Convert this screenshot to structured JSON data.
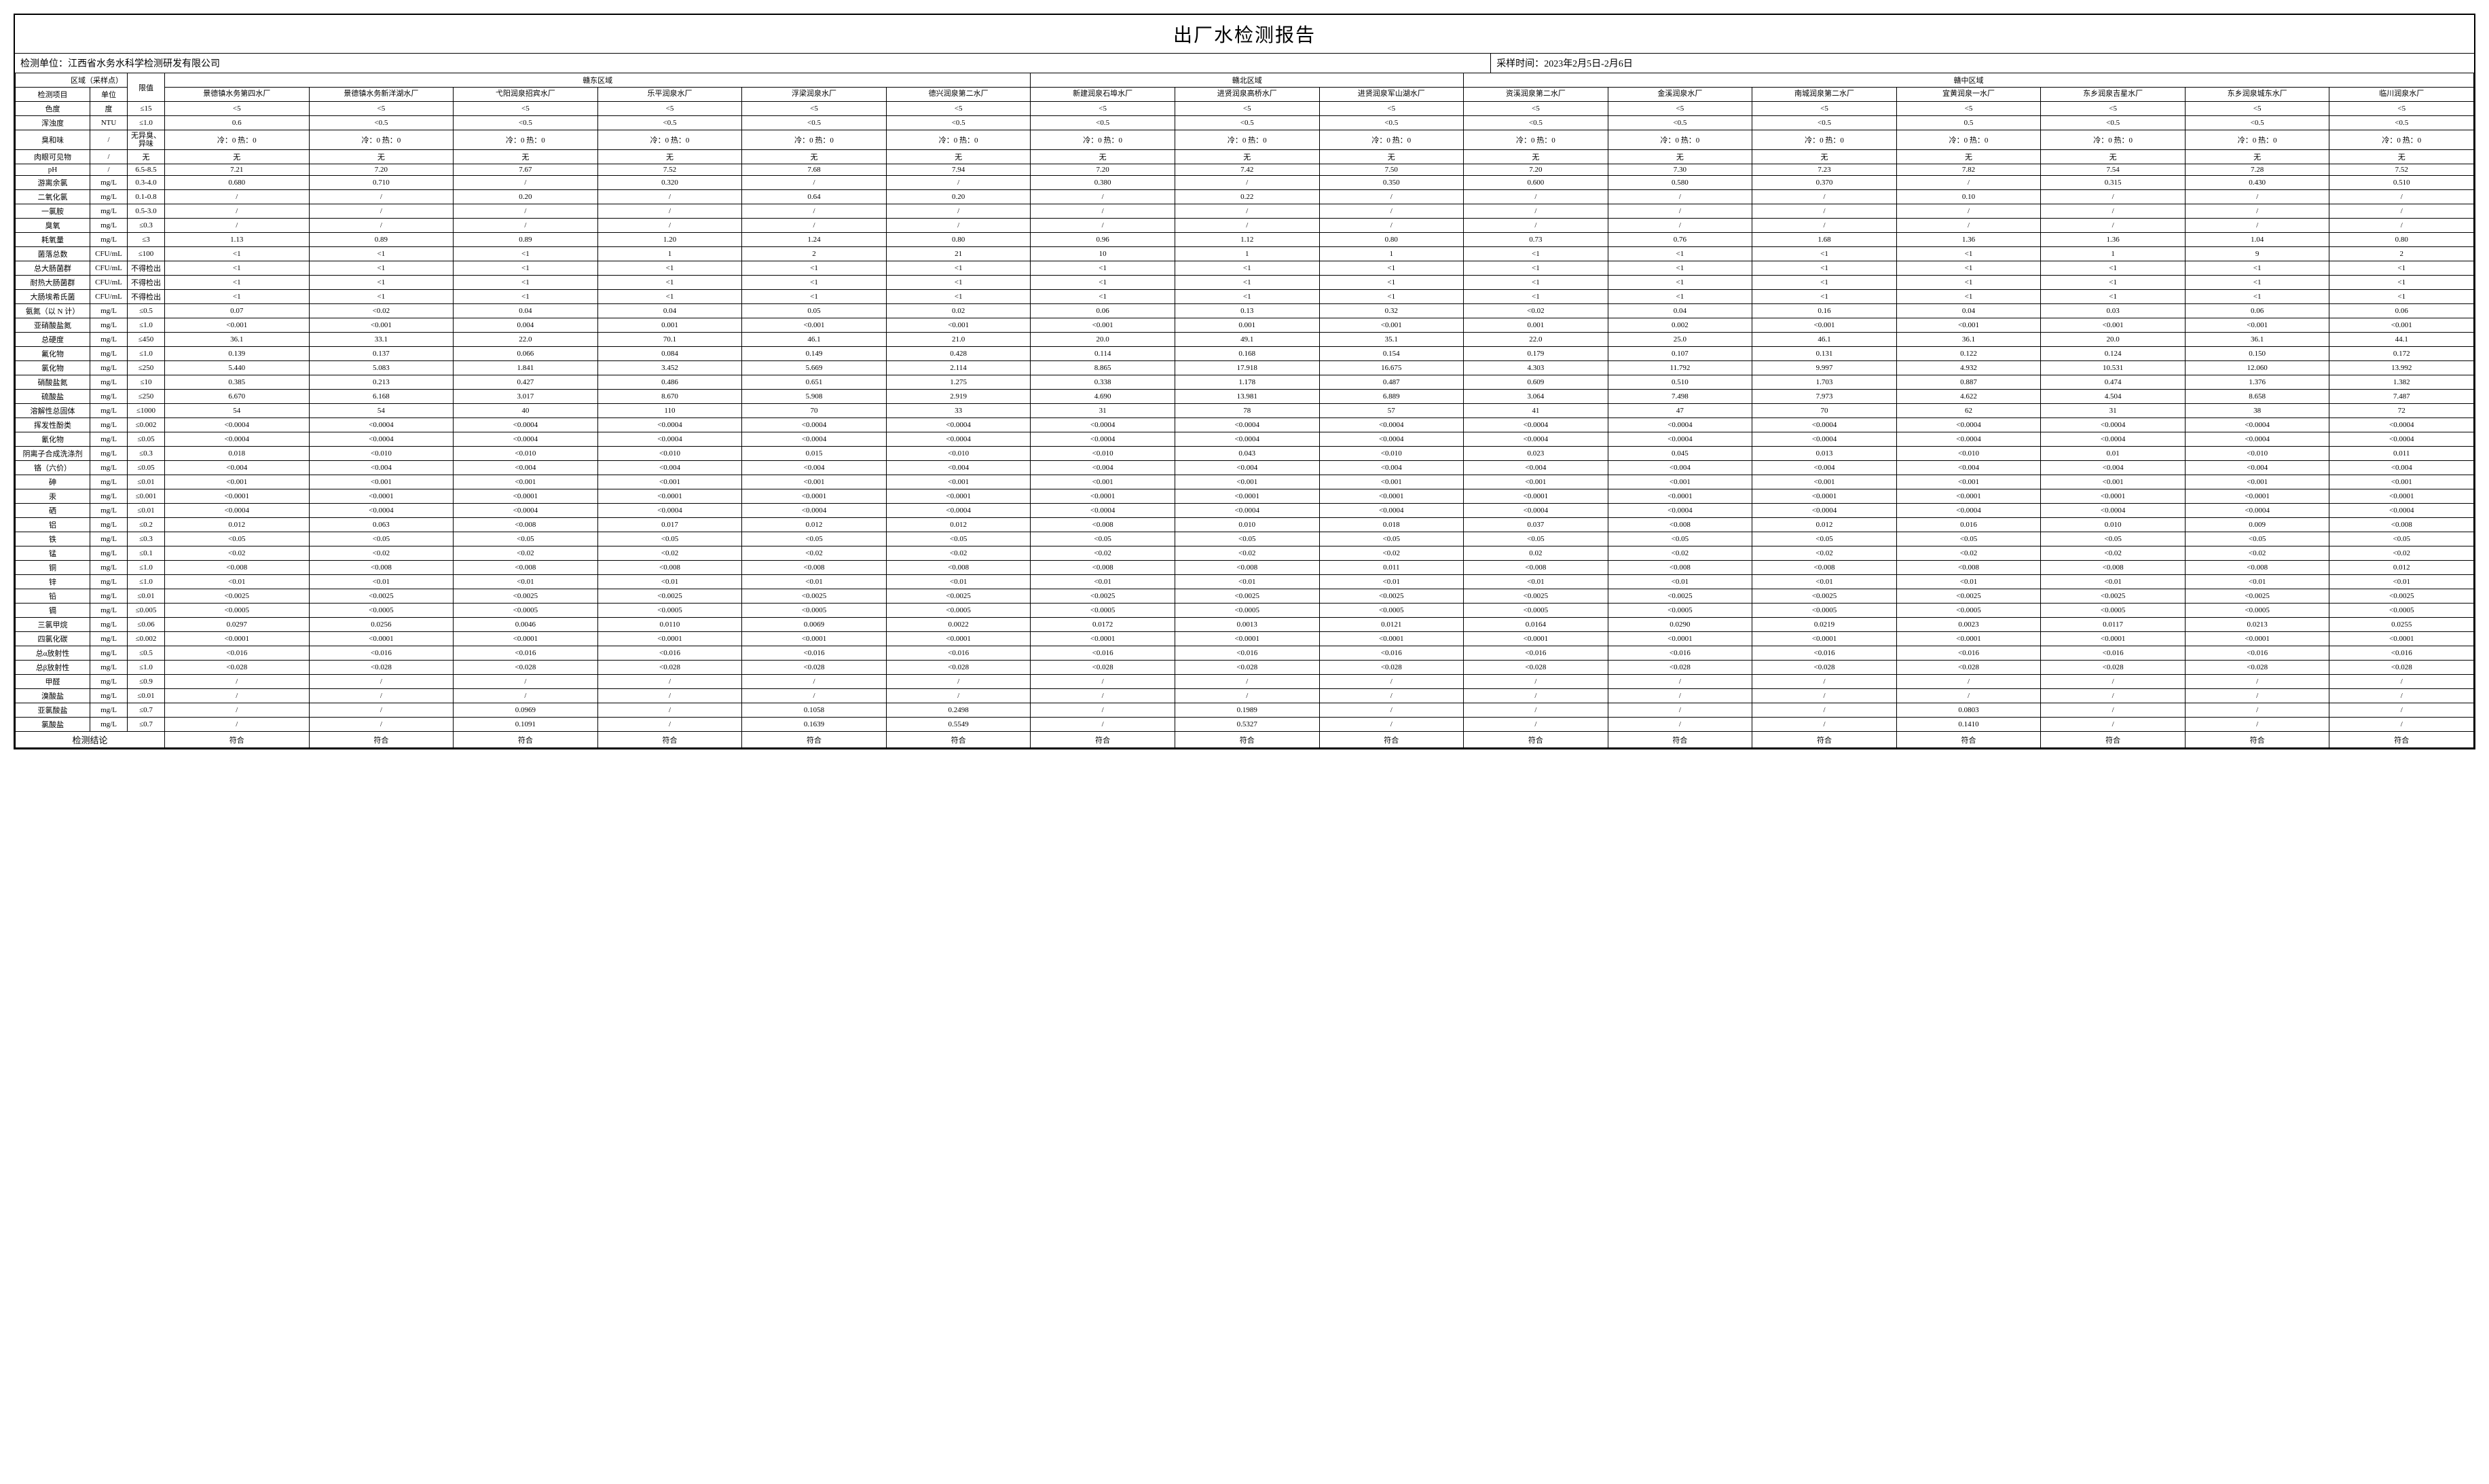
{
  "title": "出厂水检测报告",
  "meta": {
    "org_label": "检测单位：",
    "org_value": "江西省水务水科学检测研发有限公司",
    "time_label": "采样时间：",
    "time_value": "2023年2月5日-2月6日"
  },
  "header": {
    "area_label": "区域（采样点）",
    "param_label": "检测项目",
    "unit_label": "单位",
    "limit_label": "限值",
    "regions": [
      {
        "name": "赣东区域",
        "plants": [
          "景德镇水务第四水厂",
          "景德镇水务新洋湖水厂",
          "弋阳润泉招宾水厂",
          "乐平润泉水厂",
          "浮梁润泉水厂",
          "德兴润泉第二水厂"
        ]
      },
      {
        "name": "赣北区域",
        "plants": [
          "新建润泉石埠水厂",
          "进贤润泉高桥水厂",
          "进贤润泉军山湖水厂"
        ]
      },
      {
        "name": "赣中区域",
        "plants": [
          "资溪润泉第二水厂",
          "金溪润泉水厂",
          "南城润泉第二水厂",
          "宜黄润泉一水厂",
          "东乡润泉吉星水厂",
          "东乡润泉城东水厂",
          "临川润泉水厂"
        ]
      }
    ]
  },
  "params": [
    {
      "n": "色度",
      "u": "度",
      "l": "≤15",
      "v": [
        "<5",
        "<5",
        "<5",
        "<5",
        "<5",
        "<5",
        "<5",
        "<5",
        "<5",
        "<5",
        "<5",
        "<5",
        "<5",
        "<5",
        "<5",
        "<5"
      ]
    },
    {
      "n": "浑浊度",
      "u": "NTU",
      "l": "≤1.0",
      "v": [
        "0.6",
        "<0.5",
        "<0.5",
        "<0.5",
        "<0.5",
        "<0.5",
        "<0.5",
        "<0.5",
        "<0.5",
        "<0.5",
        "<0.5",
        "<0.5",
        "0.5",
        "<0.5",
        "<0.5",
        "<0.5"
      ]
    },
    {
      "n": "臭和味",
      "u": "/",
      "l": "无异臭、异味",
      "v": [
        "冷：0 热：0",
        "冷：0 热：0",
        "冷：0 热：0",
        "冷：0 热：0",
        "冷：0 热：0",
        "冷：0 热：0",
        "冷：0 热：0",
        "冷：0 热：0",
        "冷：0 热：0",
        "冷：0 热：0",
        "冷：0 热：0",
        "冷：0 热：0",
        "冷：0 热：0",
        "冷：0 热：0",
        "冷：0 热：0",
        "冷：0 热：0"
      ]
    },
    {
      "n": "肉眼可见物",
      "u": "/",
      "l": "无",
      "v": [
        "无",
        "无",
        "无",
        "无",
        "无",
        "无",
        "无",
        "无",
        "无",
        "无",
        "无",
        "无",
        "无",
        "无",
        "无",
        "无"
      ]
    },
    {
      "n": "pH",
      "u": "/",
      "l": "6.5-8.5",
      "v": [
        "7.21",
        "7.20",
        "7.67",
        "7.52",
        "7.68",
        "7.94",
        "7.20",
        "7.42",
        "7.50",
        "7.20",
        "7.30",
        "7.23",
        "7.82",
        "7.54",
        "7.28",
        "7.52"
      ]
    },
    {
      "n": "游离余氯",
      "u": "mg/L",
      "l": "0.3-4.0",
      "v": [
        "0.680",
        "0.710",
        "/",
        "0.320",
        "/",
        "/",
        "0.380",
        "/",
        "0.350",
        "0.600",
        "0.580",
        "0.370",
        "/",
        "0.315",
        "0.430",
        "0.510"
      ]
    },
    {
      "n": "二氧化氯",
      "u": "mg/L",
      "l": "0.1-0.8",
      "v": [
        "/",
        "/",
        "0.20",
        "/",
        "0.64",
        "0.20",
        "/",
        "0.22",
        "/",
        "/",
        "/",
        "/",
        "0.10",
        "/",
        "/",
        "/"
      ]
    },
    {
      "n": "一氯胺",
      "u": "mg/L",
      "l": "0.5-3.0",
      "v": [
        "/",
        "/",
        "/",
        "/",
        "/",
        "/",
        "/",
        "/",
        "/",
        "/",
        "/",
        "/",
        "/",
        "/",
        "/",
        "/"
      ]
    },
    {
      "n": "臭氧",
      "u": "mg/L",
      "l": "≤0.3",
      "v": [
        "/",
        "/",
        "/",
        "/",
        "/",
        "/",
        "/",
        "/",
        "/",
        "/",
        "/",
        "/",
        "/",
        "/",
        "/",
        "/"
      ]
    },
    {
      "n": "耗氧量",
      "u": "mg/L",
      "l": "≤3",
      "v": [
        "1.13",
        "0.89",
        "0.89",
        "1.20",
        "1.24",
        "0.80",
        "0.96",
        "1.12",
        "0.80",
        "0.73",
        "0.76",
        "1.68",
        "1.36",
        "1.36",
        "1.04",
        "0.80"
      ]
    },
    {
      "n": "菌落总数",
      "u": "CFU/mL",
      "l": "≤100",
      "v": [
        "<1",
        "<1",
        "<1",
        "1",
        "2",
        "21",
        "10",
        "1",
        "1",
        "<1",
        "<1",
        "<1",
        "<1",
        "1",
        "9",
        "2"
      ]
    },
    {
      "n": "总大肠菌群",
      "u": "CFU/mL",
      "l": "不得检出",
      "v": [
        "<1",
        "<1",
        "<1",
        "<1",
        "<1",
        "<1",
        "<1",
        "<1",
        "<1",
        "<1",
        "<1",
        "<1",
        "<1",
        "<1",
        "<1",
        "<1"
      ]
    },
    {
      "n": "耐热大肠菌群",
      "u": "CFU/mL",
      "l": "不得检出",
      "v": [
        "<1",
        "<1",
        "<1",
        "<1",
        "<1",
        "<1",
        "<1",
        "<1",
        "<1",
        "<1",
        "<1",
        "<1",
        "<1",
        "<1",
        "<1",
        "<1"
      ]
    },
    {
      "n": "大肠埃希氏菌",
      "u": "CFU/mL",
      "l": "不得检出",
      "v": [
        "<1",
        "<1",
        "<1",
        "<1",
        "<1",
        "<1",
        "<1",
        "<1",
        "<1",
        "<1",
        "<1",
        "<1",
        "<1",
        "<1",
        "<1",
        "<1"
      ]
    },
    {
      "n": "氨氮（以 N 计）",
      "u": "mg/L",
      "l": "≤0.5",
      "v": [
        "0.07",
        "<0.02",
        "0.04",
        "0.04",
        "0.05",
        "0.02",
        "0.06",
        "0.13",
        "0.32",
        "<0.02",
        "0.04",
        "0.16",
        "0.04",
        "0.03",
        "0.06",
        "0.06"
      ]
    },
    {
      "n": "亚硝酸盐氮",
      "u": "mg/L",
      "l": "≤1.0",
      "v": [
        "<0.001",
        "<0.001",
        "0.004",
        "0.001",
        "<0.001",
        "<0.001",
        "<0.001",
        "0.001",
        "<0.001",
        "0.001",
        "0.002",
        "<0.001",
        "<0.001",
        "<0.001",
        "<0.001",
        "<0.001"
      ]
    },
    {
      "n": "总硬度",
      "u": "mg/L",
      "l": "≤450",
      "v": [
        "36.1",
        "33.1",
        "22.0",
        "70.1",
        "46.1",
        "21.0",
        "20.0",
        "49.1",
        "35.1",
        "22.0",
        "25.0",
        "46.1",
        "36.1",
        "20.0",
        "36.1",
        "44.1"
      ]
    },
    {
      "n": "氟化物",
      "u": "mg/L",
      "l": "≤1.0",
      "v": [
        "0.139",
        "0.137",
        "0.066",
        "0.084",
        "0.149",
        "0.428",
        "0.114",
        "0.168",
        "0.154",
        "0.179",
        "0.107",
        "0.131",
        "0.122",
        "0.124",
        "0.150",
        "0.172"
      ]
    },
    {
      "n": "氯化物",
      "u": "mg/L",
      "l": "≤250",
      "v": [
        "5.440",
        "5.083",
        "1.841",
        "3.452",
        "5.669",
        "2.114",
        "8.865",
        "17.918",
        "16.675",
        "4.303",
        "11.792",
        "9.997",
        "4.932",
        "10.531",
        "12.060",
        "13.992"
      ]
    },
    {
      "n": "硝酸盐氮",
      "u": "mg/L",
      "l": "≤10",
      "v": [
        "0.385",
        "0.213",
        "0.427",
        "0.486",
        "0.651",
        "1.275",
        "0.338",
        "1.178",
        "0.487",
        "0.609",
        "0.510",
        "1.703",
        "0.887",
        "0.474",
        "1.376",
        "1.382"
      ]
    },
    {
      "n": "硫酸盐",
      "u": "mg/L",
      "l": "≤250",
      "v": [
        "6.670",
        "6.168",
        "3.017",
        "8.670",
        "5.908",
        "2.919",
        "4.690",
        "13.981",
        "6.889",
        "3.064",
        "7.498",
        "7.973",
        "4.622",
        "4.504",
        "8.658",
        "7.487"
      ]
    },
    {
      "n": "溶解性总固体",
      "u": "mg/L",
      "l": "≤1000",
      "v": [
        "54",
        "54",
        "40",
        "110",
        "70",
        "33",
        "31",
        "78",
        "57",
        "41",
        "47",
        "70",
        "62",
        "31",
        "38",
        "72"
      ]
    },
    {
      "n": "挥发性酚类",
      "u": "mg/L",
      "l": "≤0.002",
      "v": [
        "<0.0004",
        "<0.0004",
        "<0.0004",
        "<0.0004",
        "<0.0004",
        "<0.0004",
        "<0.0004",
        "<0.0004",
        "<0.0004",
        "<0.0004",
        "<0.0004",
        "<0.0004",
        "<0.0004",
        "<0.0004",
        "<0.0004",
        "<0.0004"
      ]
    },
    {
      "n": "氰化物",
      "u": "mg/L",
      "l": "≤0.05",
      "v": [
        "<0.0004",
        "<0.0004",
        "<0.0004",
        "<0.0004",
        "<0.0004",
        "<0.0004",
        "<0.0004",
        "<0.0004",
        "<0.0004",
        "<0.0004",
        "<0.0004",
        "<0.0004",
        "<0.0004",
        "<0.0004",
        "<0.0004",
        "<0.0004"
      ]
    },
    {
      "n": "阴离子合成洗涤剂",
      "u": "mg/L",
      "l": "≤0.3",
      "v": [
        "0.018",
        "<0.010",
        "<0.010",
        "<0.010",
        "0.015",
        "<0.010",
        "<0.010",
        "0.043",
        "<0.010",
        "0.023",
        "0.045",
        "0.013",
        "<0.010",
        "0.01",
        "<0.010",
        "0.011"
      ]
    },
    {
      "n": "铬（六价）",
      "u": "mg/L",
      "l": "≤0.05",
      "v": [
        "<0.004",
        "<0.004",
        "<0.004",
        "<0.004",
        "<0.004",
        "<0.004",
        "<0.004",
        "<0.004",
        "<0.004",
        "<0.004",
        "<0.004",
        "<0.004",
        "<0.004",
        "<0.004",
        "<0.004",
        "<0.004"
      ]
    },
    {
      "n": "砷",
      "u": "mg/L",
      "l": "≤0.01",
      "v": [
        "<0.001",
        "<0.001",
        "<0.001",
        "<0.001",
        "<0.001",
        "<0.001",
        "<0.001",
        "<0.001",
        "<0.001",
        "<0.001",
        "<0.001",
        "<0.001",
        "<0.001",
        "<0.001",
        "<0.001",
        "<0.001"
      ]
    },
    {
      "n": "汞",
      "u": "mg/L",
      "l": "≤0.001",
      "v": [
        "<0.0001",
        "<0.0001",
        "<0.0001",
        "<0.0001",
        "<0.0001",
        "<0.0001",
        "<0.0001",
        "<0.0001",
        "<0.0001",
        "<0.0001",
        "<0.0001",
        "<0.0001",
        "<0.0001",
        "<0.0001",
        "<0.0001",
        "<0.0001"
      ]
    },
    {
      "n": "硒",
      "u": "mg/L",
      "l": "≤0.01",
      "v": [
        "<0.0004",
        "<0.0004",
        "<0.0004",
        "<0.0004",
        "<0.0004",
        "<0.0004",
        "<0.0004",
        "<0.0004",
        "<0.0004",
        "<0.0004",
        "<0.0004",
        "<0.0004",
        "<0.0004",
        "<0.0004",
        "<0.0004",
        "<0.0004"
      ]
    },
    {
      "n": "铝",
      "u": "mg/L",
      "l": "≤0.2",
      "v": [
        "0.012",
        "0.063",
        "<0.008",
        "0.017",
        "0.012",
        "0.012",
        "<0.008",
        "0.010",
        "0.018",
        "0.037",
        "<0.008",
        "0.012",
        "0.016",
        "0.010",
        "0.009",
        "<0.008"
      ]
    },
    {
      "n": "铁",
      "u": "mg/L",
      "l": "≤0.3",
      "v": [
        "<0.05",
        "<0.05",
        "<0.05",
        "<0.05",
        "<0.05",
        "<0.05",
        "<0.05",
        "<0.05",
        "<0.05",
        "<0.05",
        "<0.05",
        "<0.05",
        "<0.05",
        "<0.05",
        "<0.05",
        "<0.05"
      ]
    },
    {
      "n": "锰",
      "u": "mg/L",
      "l": "≤0.1",
      "v": [
        "<0.02",
        "<0.02",
        "<0.02",
        "<0.02",
        "<0.02",
        "<0.02",
        "<0.02",
        "<0.02",
        "<0.02",
        "0.02",
        "<0.02",
        "<0.02",
        "<0.02",
        "<0.02",
        "<0.02",
        "<0.02"
      ]
    },
    {
      "n": "铜",
      "u": "mg/L",
      "l": "≤1.0",
      "v": [
        "<0.008",
        "<0.008",
        "<0.008",
        "<0.008",
        "<0.008",
        "<0.008",
        "<0.008",
        "<0.008",
        "0.011",
        "<0.008",
        "<0.008",
        "<0.008",
        "<0.008",
        "<0.008",
        "<0.008",
        "0.012"
      ]
    },
    {
      "n": "锌",
      "u": "mg/L",
      "l": "≤1.0",
      "v": [
        "<0.01",
        "<0.01",
        "<0.01",
        "<0.01",
        "<0.01",
        "<0.01",
        "<0.01",
        "<0.01",
        "<0.01",
        "<0.01",
        "<0.01",
        "<0.01",
        "<0.01",
        "<0.01",
        "<0.01",
        "<0.01"
      ]
    },
    {
      "n": "铅",
      "u": "mg/L",
      "l": "≤0.01",
      "v": [
        "<0.0025",
        "<0.0025",
        "<0.0025",
        "<0.0025",
        "<0.0025",
        "<0.0025",
        "<0.0025",
        "<0.0025",
        "<0.0025",
        "<0.0025",
        "<0.0025",
        "<0.0025",
        "<0.0025",
        "<0.0025",
        "<0.0025",
        "<0.0025"
      ]
    },
    {
      "n": "镉",
      "u": "mg/L",
      "l": "≤0.005",
      "v": [
        "<0.0005",
        "<0.0005",
        "<0.0005",
        "<0.0005",
        "<0.0005",
        "<0.0005",
        "<0.0005",
        "<0.0005",
        "<0.0005",
        "<0.0005",
        "<0.0005",
        "<0.0005",
        "<0.0005",
        "<0.0005",
        "<0.0005",
        "<0.0005"
      ]
    },
    {
      "n": "三氯甲烷",
      "u": "mg/L",
      "l": "≤0.06",
      "v": [
        "0.0297",
        "0.0256",
        "0.0046",
        "0.0110",
        "0.0069",
        "0.0022",
        "0.0172",
        "0.0013",
        "0.0121",
        "0.0164",
        "0.0290",
        "0.0219",
        "0.0023",
        "0.0117",
        "0.0213",
        "0.0255"
      ]
    },
    {
      "n": "四氯化碳",
      "u": "mg/L",
      "l": "≤0.002",
      "v": [
        "<0.0001",
        "<0.0001",
        "<0.0001",
        "<0.0001",
        "<0.0001",
        "<0.0001",
        "<0.0001",
        "<0.0001",
        "<0.0001",
        "<0.0001",
        "<0.0001",
        "<0.0001",
        "<0.0001",
        "<0.0001",
        "<0.0001",
        "<0.0001"
      ]
    },
    {
      "n": "总α放射性",
      "u": "mg/L",
      "l": "≤0.5",
      "v": [
        "<0.016",
        "<0.016",
        "<0.016",
        "<0.016",
        "<0.016",
        "<0.016",
        "<0.016",
        "<0.016",
        "<0.016",
        "<0.016",
        "<0.016",
        "<0.016",
        "<0.016",
        "<0.016",
        "<0.016",
        "<0.016"
      ]
    },
    {
      "n": "总β放射性",
      "u": "mg/L",
      "l": "≤1.0",
      "v": [
        "<0.028",
        "<0.028",
        "<0.028",
        "<0.028",
        "<0.028",
        "<0.028",
        "<0.028",
        "<0.028",
        "<0.028",
        "<0.028",
        "<0.028",
        "<0.028",
        "<0.028",
        "<0.028",
        "<0.028",
        "<0.028"
      ]
    },
    {
      "n": "甲醛",
      "u": "mg/L",
      "l": "≤0.9",
      "v": [
        "/",
        "/",
        "/",
        "/",
        "/",
        "/",
        "/",
        "/",
        "/",
        "/",
        "/",
        "/",
        "/",
        "/",
        "/",
        "/"
      ]
    },
    {
      "n": "溴酸盐",
      "u": "mg/L",
      "l": "≤0.01",
      "v": [
        "/",
        "/",
        "/",
        "/",
        "/",
        "/",
        "/",
        "/",
        "/",
        "/",
        "/",
        "/",
        "/",
        "/",
        "/",
        "/"
      ]
    },
    {
      "n": "亚氯酸盐",
      "u": "mg/L",
      "l": "≤0.7",
      "v": [
        "/",
        "/",
        "0.0969",
        "/",
        "0.1058",
        "0.2498",
        "/",
        "0.1989",
        "/",
        "/",
        "/",
        "/",
        "0.0803",
        "/",
        "/",
        "/"
      ]
    },
    {
      "n": "氯酸盐",
      "u": "mg/L",
      "l": "≤0.7",
      "v": [
        "/",
        "/",
        "0.1091",
        "/",
        "0.1639",
        "0.5549",
        "/",
        "0.5327",
        "/",
        "/",
        "/",
        "/",
        "0.1410",
        "/",
        "/",
        "/"
      ]
    }
  ],
  "conclusion": {
    "label": "检测结论",
    "values": [
      "符合",
      "符合",
      "符合",
      "符合",
      "符合",
      "符合",
      "符合",
      "符合",
      "符合",
      "符合",
      "符合",
      "符合",
      "符合",
      "符合",
      "符合",
      "符合"
    ]
  },
  "style": {
    "border_color": "#000000",
    "background": "#ffffff",
    "title_fontsize": 28,
    "cell_fontsize": 11
  }
}
